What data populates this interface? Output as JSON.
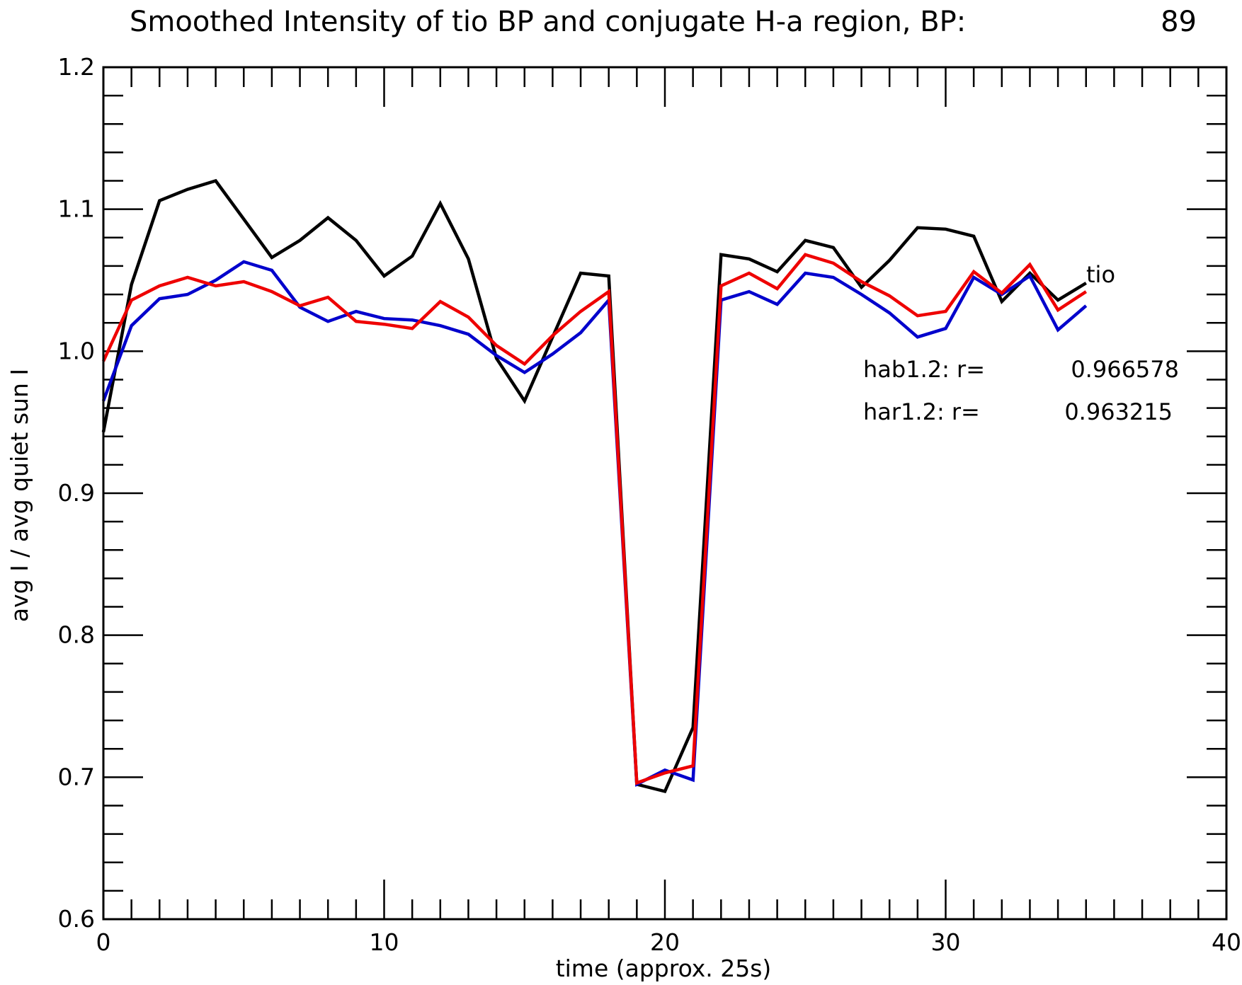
{
  "chart_data": {
    "type": "line",
    "title": "Smoothed Intensity of tio BP and conjugate H-a region, BP:",
    "title_value": "89",
    "xlabel": "time (approx. 25s)",
    "ylabel": "avg I / avg quiet sun I",
    "xlim": [
      0,
      40
    ],
    "ylim": [
      0.6,
      1.2
    ],
    "x_ticks": [
      "0",
      "10",
      "20",
      "30",
      "40"
    ],
    "y_ticks": [
      "0.6",
      "0.7",
      "0.8",
      "0.9",
      "1.0",
      "1.1",
      "1.2"
    ],
    "grid": false,
    "x": [
      0,
      1,
      2,
      3,
      4,
      5,
      6,
      7,
      8,
      9,
      10,
      11,
      12,
      13,
      14,
      15,
      16,
      17,
      18,
      19,
      20,
      21,
      22,
      23,
      24,
      25,
      26,
      27,
      28,
      29,
      30,
      31,
      32,
      33,
      34,
      35
    ],
    "series": [
      {
        "name": "tio",
        "color": "#000000",
        "values": [
          0.943,
          1.047,
          1.106,
          1.114,
          1.12,
          1.093,
          1.066,
          1.078,
          1.094,
          1.078,
          1.053,
          1.067,
          1.104,
          1.065,
          0.995,
          0.965,
          1.01,
          1.055,
          1.053,
          0.695,
          0.69,
          0.735,
          1.068,
          1.065,
          1.056,
          1.078,
          1.073,
          1.045,
          1.064,
          1.087,
          1.086,
          1.081,
          1.035,
          1.055,
          1.036,
          1.048
        ]
      },
      {
        "color": "#0000cc",
        "values": [
          0.965,
          1.018,
          1.037,
          1.04,
          1.05,
          1.063,
          1.057,
          1.031,
          1.021,
          1.028,
          1.023,
          1.022,
          1.018,
          1.012,
          0.997,
          0.985,
          0.998,
          1.013,
          1.036,
          0.695,
          0.705,
          0.698,
          1.036,
          1.042,
          1.033,
          1.055,
          1.052,
          1.04,
          1.027,
          1.01,
          1.016,
          1.052,
          1.04,
          1.053,
          1.015,
          1.032
        ]
      },
      {
        "color": "#ee0000",
        "values": [
          0.993,
          1.036,
          1.046,
          1.052,
          1.046,
          1.049,
          1.042,
          1.032,
          1.038,
          1.021,
          1.019,
          1.016,
          1.035,
          1.024,
          1.004,
          0.991,
          1.011,
          1.028,
          1.042,
          0.696,
          0.703,
          0.708,
          1.046,
          1.055,
          1.044,
          1.068,
          1.062,
          1.049,
          1.039,
          1.025,
          1.028,
          1.056,
          1.041,
          1.061,
          1.029,
          1.042
        ]
      }
    ],
    "annotations": [
      {
        "label": "hab1.2: r=",
        "value": "0.966578"
      },
      {
        "label": "har1.2: r=",
        "value": "0.963215"
      }
    ]
  }
}
